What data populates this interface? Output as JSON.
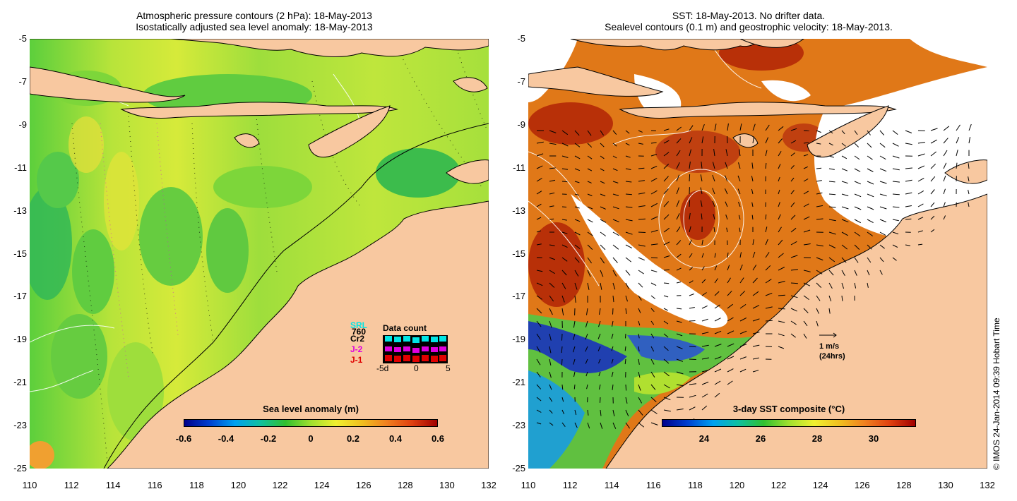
{
  "left": {
    "title_line1": "Atmospheric pressure contours (2 hPa): 18-May-2013",
    "title_line2": "Isostatically adjusted sea level anomaly: 18-May-2013",
    "colorbar_title": "Sea level anomaly (m)",
    "colorbar_ticks": [
      "-0.6",
      "-0.4",
      "-0.2",
      "0",
      "0.2",
      "0.4",
      "0.6"
    ],
    "colorbar_range": [
      -0.6,
      0.6
    ],
    "data_count": {
      "title": "Data count",
      "missions": [
        {
          "label": "SRL",
          "color": "#00e5e5"
        },
        {
          "label": "760",
          "color": "#000000"
        },
        {
          "label": "Cr2",
          "color": "#000000"
        },
        {
          "label": "J-2",
          "color": "#e000e0"
        },
        {
          "label": "J-1",
          "color": "#e00000"
        }
      ],
      "axis_labels": [
        "-5d",
        "0",
        "5"
      ]
    }
  },
  "right": {
    "title_line1": "SST: 18-May-2013. No drifter data.",
    "title_line2": "Sealevel contours (0.1 m) and geostrophic velocity: 18-May-2013.",
    "colorbar_title": "3-day SST composite (°C)",
    "colorbar_ticks": [
      "24",
      "26",
      "28",
      "30"
    ],
    "colorbar_range": [
      22.5,
      31.5
    ],
    "velocity_scale": {
      "line1": "1 m/s",
      "line2": "(24hrs)"
    }
  },
  "axes": {
    "y_ticks": [
      "-5",
      "-7",
      "-9",
      "-11",
      "-13",
      "-15",
      "-17",
      "-19",
      "-21",
      "-23",
      "-25"
    ],
    "x_ticks": [
      "110",
      "112",
      "114",
      "116",
      "118",
      "120",
      "122",
      "124",
      "126",
      "128",
      "130",
      "132"
    ],
    "lon_range": [
      110,
      132
    ],
    "lat_range": [
      -25,
      -5
    ]
  },
  "credit": "© IMOS 24-Jan-2014 09:39 Hobart Time",
  "colors": {
    "land": "#f8c8a0",
    "ocean_green": "#7cd63a",
    "sst_warm": "#d86010",
    "no_data": "#ffffff"
  }
}
